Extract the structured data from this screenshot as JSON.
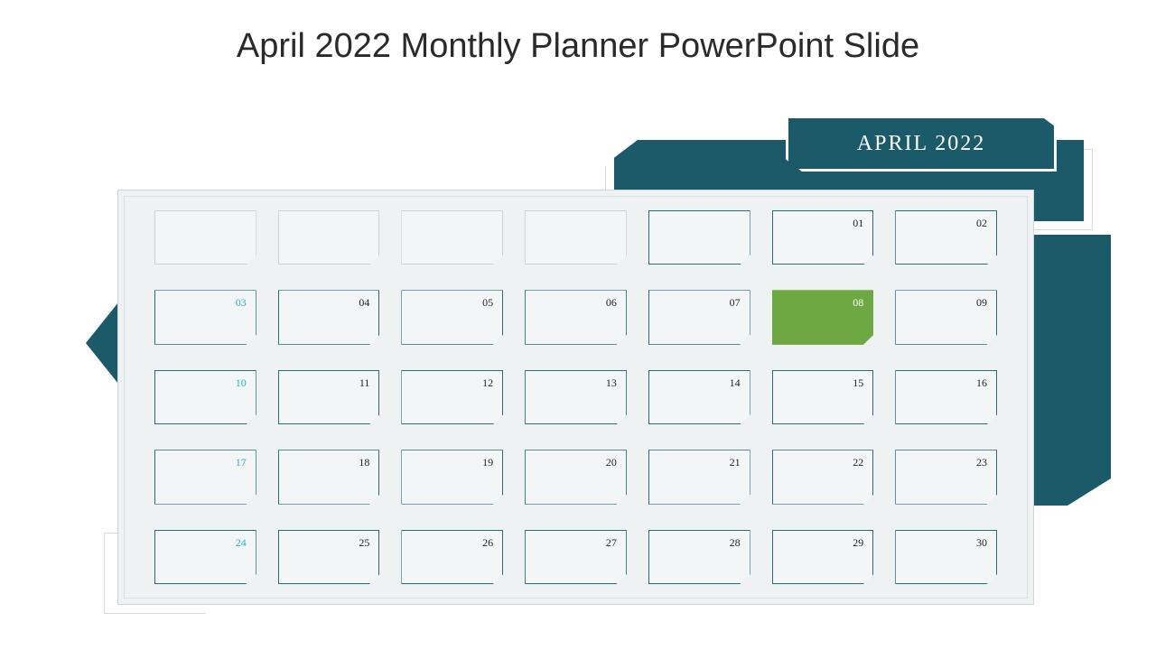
{
  "title": "April 2022 Monthly Planner PowerPoint Slide",
  "month_label": "APRIL 2022",
  "colors": {
    "accent": "#1b5a68",
    "highlight": "#6ea843",
    "sunday_text": "#2db2c2",
    "panel_bg": "#eef2f3",
    "cell_border": "#2b6a76",
    "faded_border": "#c9d2d4"
  },
  "calendar": {
    "columns": 7,
    "rows": 5,
    "days": [
      {
        "label": "",
        "faded": true
      },
      {
        "label": "",
        "faded": true
      },
      {
        "label": "",
        "faded": true
      },
      {
        "label": "",
        "faded": true
      },
      {
        "label": ""
      },
      {
        "label": "01"
      },
      {
        "label": "02"
      },
      {
        "label": "03",
        "sun": true
      },
      {
        "label": "04"
      },
      {
        "label": "05"
      },
      {
        "label": "06"
      },
      {
        "label": "07"
      },
      {
        "label": "08",
        "hl": true
      },
      {
        "label": "09"
      },
      {
        "label": "10",
        "sun": true
      },
      {
        "label": "11"
      },
      {
        "label": "12"
      },
      {
        "label": "13"
      },
      {
        "label": "14"
      },
      {
        "label": "15"
      },
      {
        "label": "16"
      },
      {
        "label": "17",
        "sun": true
      },
      {
        "label": "18"
      },
      {
        "label": "19"
      },
      {
        "label": "20"
      },
      {
        "label": "21"
      },
      {
        "label": "22"
      },
      {
        "label": "23"
      },
      {
        "label": "24",
        "sun": true
      },
      {
        "label": "25"
      },
      {
        "label": "26"
      },
      {
        "label": "27"
      },
      {
        "label": "28"
      },
      {
        "label": "29"
      },
      {
        "label": "30"
      }
    ]
  }
}
